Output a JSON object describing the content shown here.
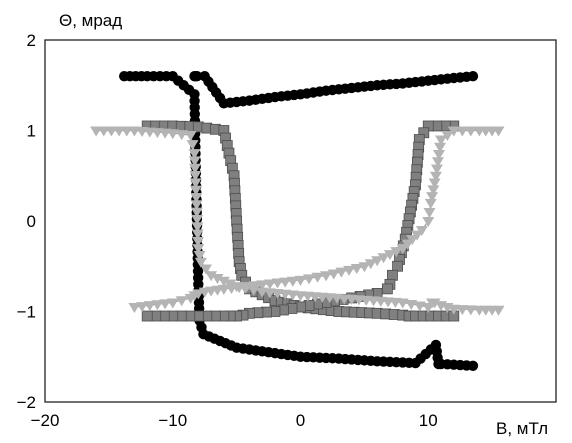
{
  "chart_data": {
    "type": "scatter",
    "title": "",
    "xlabel": "B, мТл",
    "ylabel": "Θ, мрад",
    "xlim": [
      -20,
      20
    ],
    "ylim": [
      -2,
      2
    ],
    "x_ticks": [
      "−20",
      "−10",
      "0",
      "10"
    ],
    "y_ticks": [
      "2",
      "1",
      "0",
      "−1",
      "−2"
    ],
    "x_tick_values": [
      -20,
      -10,
      0,
      10
    ],
    "y_tick_values": [
      2,
      1,
      0,
      -1,
      -2
    ],
    "grid": false,
    "legend": "none",
    "series": [
      {
        "marker": "circle",
        "color": "#000000",
        "line_color": "#333333",
        "x": [
          -13.8,
          -12,
          -10,
          -8.3,
          -8.2,
          -8.1,
          -8,
          -7.9,
          -7.6,
          -5,
          -2,
          0,
          3,
          6,
          9,
          10.6,
          10.8,
          11,
          13.5,
          13.5,
          12,
          10,
          8,
          6,
          4,
          2,
          0,
          -2,
          -4,
          -6,
          -7.5,
          -8.1,
          -8.2,
          -8.3
        ],
        "y": [
          1.6,
          1.6,
          1.6,
          1.4,
          0.6,
          -0.05,
          -0.7,
          -1.1,
          -1.25,
          -1.4,
          -1.46,
          -1.5,
          -1.52,
          -1.55,
          -1.57,
          -1.37,
          -1.58,
          -1.58,
          -1.6,
          1.6,
          1.58,
          1.55,
          1.52,
          1.5,
          1.47,
          1.44,
          1.4,
          1.37,
          1.33,
          1.3,
          1.6,
          1.6,
          1.6,
          1.6
        ]
      },
      {
        "marker": "square",
        "color": "#808080",
        "line_color": "#555555",
        "x": [
          -12,
          -10,
          -8,
          -6,
          -5.2,
          -5,
          -4.8,
          -4.6,
          -4,
          -2,
          0,
          3,
          6,
          8,
          8.5,
          9,
          12,
          12,
          10,
          9.3,
          9,
          8.6,
          8.2,
          7.6,
          7.2,
          7,
          6.8,
          6,
          4,
          2,
          0,
          -2,
          -4,
          -4.5,
          -5,
          -6,
          -8,
          -10,
          -12
        ],
        "y": [
          1.05,
          1.05,
          1.04,
          1.0,
          0.5,
          0.0,
          -0.45,
          -0.6,
          -0.75,
          -0.88,
          -0.95,
          -1.0,
          -1.02,
          -1.04,
          -1.05,
          -1.05,
          -1.05,
          1.05,
          1.05,
          0.9,
          0.4,
          0.1,
          -0.2,
          -0.5,
          -0.6,
          -0.7,
          -0.75,
          -0.8,
          -0.85,
          -0.9,
          -0.95,
          -1.0,
          -1.02,
          -1.04,
          -1.05,
          -1.05,
          -1.05,
          -1.05,
          -1.05
        ]
      },
      {
        "marker": "triangle-down",
        "color": "#b4b4b4",
        "line_color": "#999999",
        "x": [
          -16,
          -13,
          -10,
          -8.6,
          -8.3,
          -8,
          -7.8,
          -7,
          -5,
          -3,
          0,
          4,
          8,
          10,
          10.3,
          10.5,
          11,
          12,
          14,
          15.5,
          15.5,
          14,
          12,
          11,
          10.6,
          10.2,
          10,
          9.5,
          8,
          5,
          2,
          0,
          -3,
          -6,
          -7.5,
          -8,
          -8.3,
          -8.6,
          -10,
          -13
        ],
        "y": [
          1.0,
          1.0,
          0.97,
          0.95,
          0.75,
          -0.3,
          -0.45,
          -0.6,
          -0.72,
          -0.78,
          -0.82,
          -0.86,
          -0.9,
          -0.95,
          -0.9,
          -0.9,
          -0.93,
          -0.97,
          -0.98,
          -0.98,
          1.0,
          1.0,
          1.0,
          0.9,
          0.5,
          0.2,
          0.0,
          -0.1,
          -0.3,
          -0.5,
          -0.6,
          -0.65,
          -0.7,
          -0.75,
          -0.78,
          -0.8,
          -0.82,
          -0.85,
          -0.9,
          -0.95
        ]
      }
    ]
  }
}
